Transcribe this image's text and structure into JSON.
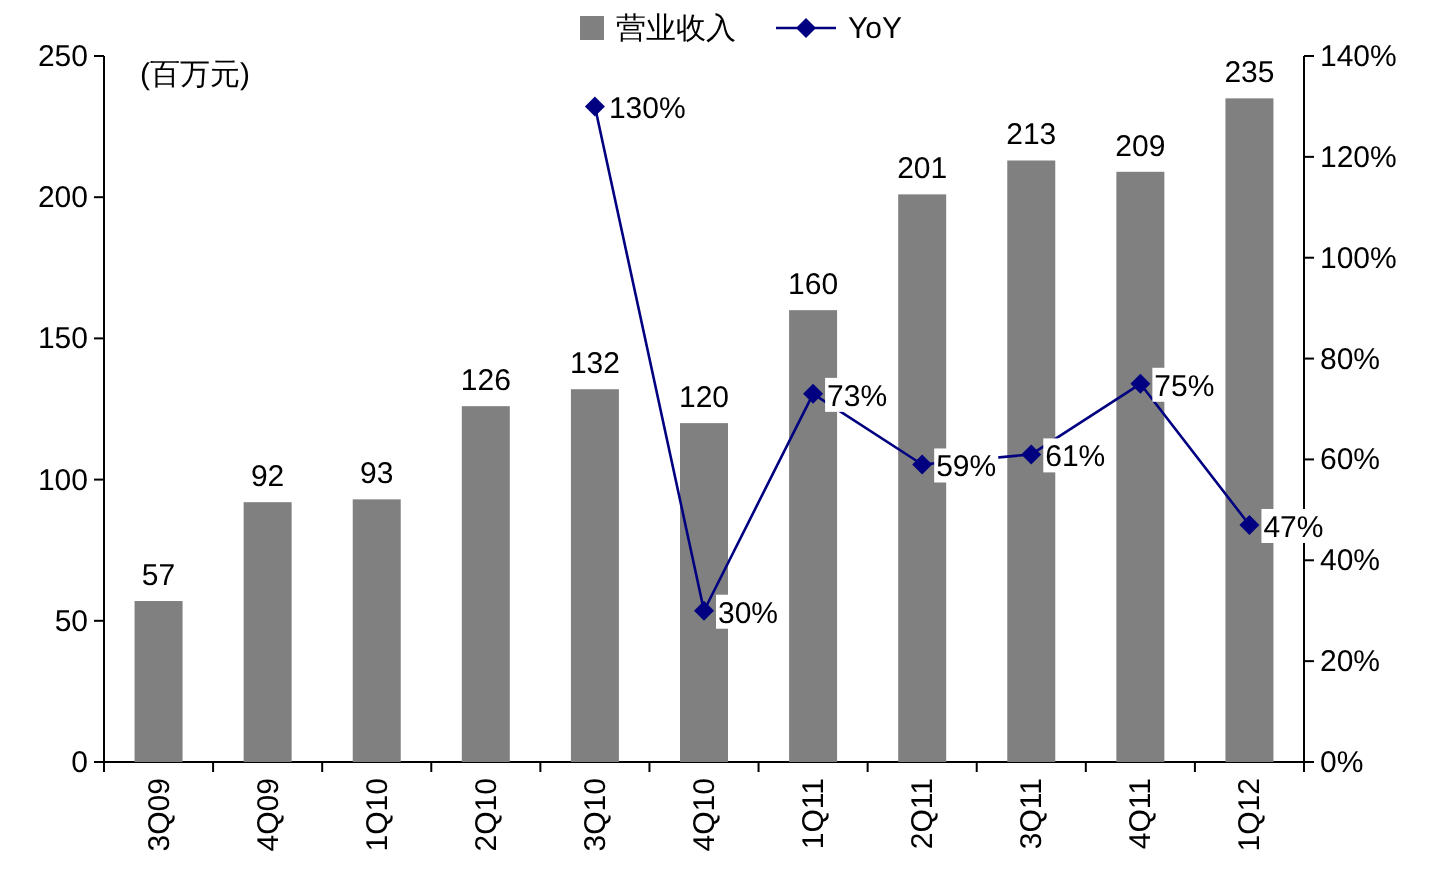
{
  "chart_data": {
    "type": "bar",
    "ylabel": "(百万元)",
    "categories": [
      "3Q09",
      "4Q09",
      "1Q10",
      "2Q10",
      "3Q10",
      "4Q10",
      "1Q11",
      "2Q11",
      "3Q11",
      "4Q11",
      "1Q12"
    ],
    "series": [
      {
        "name": "营业收入",
        "color": "#808080",
        "values": [
          57,
          92,
          93,
          126,
          132,
          120,
          160,
          201,
          213,
          209,
          235
        ],
        "value_labels": [
          "57",
          "92",
          "93",
          "126",
          "132",
          "120",
          "160",
          "201",
          "213",
          "209",
          "235"
        ]
      },
      {
        "name": "YoY",
        "type": "line",
        "axis": "y2",
        "color": "#000080",
        "marker": "diamond",
        "values": [
          null,
          null,
          null,
          null,
          130,
          30,
          73,
          59,
          61,
          75,
          47
        ],
        "value_labels": [
          null,
          null,
          null,
          null,
          "130%",
          "30%",
          "73%",
          "59%",
          "61%",
          "75%",
          "47%"
        ]
      }
    ],
    "ylim": [
      0,
      250
    ],
    "yticks": [
      0,
      50,
      100,
      150,
      200,
      250
    ],
    "y2lim": [
      0,
      140
    ],
    "y2ticks": [
      {
        "value": 0,
        "label": "0%"
      },
      {
        "value": 20,
        "label": "20%"
      },
      {
        "value": 40,
        "label": "40%"
      },
      {
        "value": 60,
        "label": "60%"
      },
      {
        "value": 80,
        "label": "80%"
      },
      {
        "value": 100,
        "label": "100%"
      },
      {
        "value": 120,
        "label": "120%"
      },
      {
        "value": 140,
        "label": "140%"
      }
    ],
    "legend": "top",
    "grid": false
  }
}
